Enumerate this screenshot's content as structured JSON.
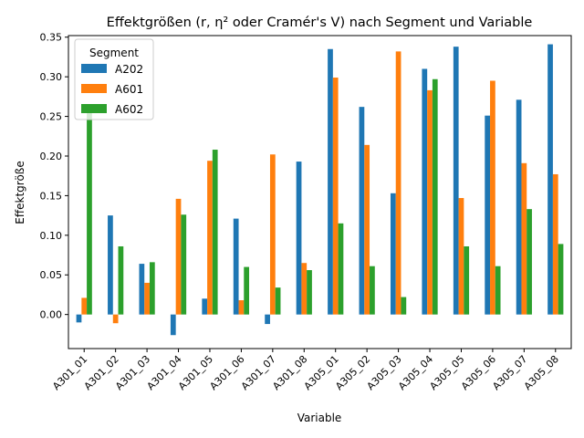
{
  "chart_data": {
    "type": "bar",
    "title": "Effektgrößen (r, η² oder Cramér's V) nach Segment und Variable",
    "xlabel": "Variable",
    "ylabel": "Effektgröße",
    "ylim": [
      -0.043,
      0.352
    ],
    "yticks": [
      0.0,
      0.05,
      0.1,
      0.15,
      0.2,
      0.25,
      0.3,
      0.35
    ],
    "ytick_labels": [
      "0.00",
      "0.05",
      "0.10",
      "0.15",
      "0.20",
      "0.25",
      "0.30",
      "0.35"
    ],
    "grid": false,
    "legend": {
      "title": "Segment",
      "placement": "top-left"
    },
    "categories": [
      "A301_01",
      "A301_02",
      "A301_03",
      "A301_04",
      "A301_05",
      "A301_06",
      "A301_07",
      "A301_08",
      "A305_01",
      "A305_02",
      "A305_03",
      "A305_04",
      "A305_05",
      "A305_06",
      "A305_07",
      "A305_08"
    ],
    "series": [
      {
        "name": "A202",
        "color": "#1f77b4",
        "values": [
          -0.01,
          0.125,
          0.064,
          -0.026,
          0.02,
          0.121,
          -0.012,
          0.193,
          0.335,
          0.262,
          0.153,
          0.31,
          0.338,
          0.251,
          0.271,
          0.341
        ]
      },
      {
        "name": "A601",
        "color": "#ff7f0e",
        "values": [
          0.021,
          -0.011,
          0.04,
          0.146,
          0.194,
          0.018,
          0.202,
          0.065,
          0.299,
          0.214,
          0.332,
          0.283,
          0.147,
          0.295,
          0.191,
          0.177
        ]
      },
      {
        "name": "A602",
        "color": "#2ca02c",
        "values": [
          0.258,
          0.086,
          0.066,
          0.126,
          0.208,
          0.06,
          0.034,
          0.056,
          0.115,
          0.061,
          0.022,
          0.297,
          0.086,
          0.061,
          0.133,
          0.089
        ]
      }
    ]
  }
}
